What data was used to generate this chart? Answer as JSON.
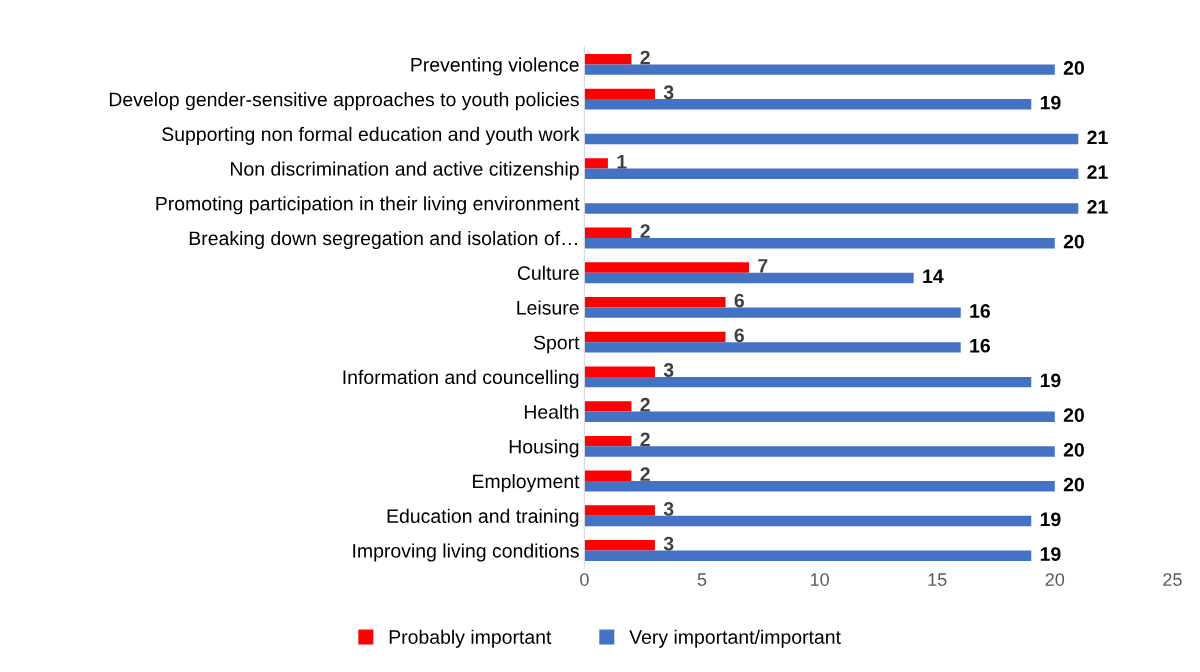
{
  "chart_data": {
    "type": "bar",
    "orientation": "horizontal",
    "categories": [
      "Preventing violence",
      "Develop gender-sensitive approaches to youth policies",
      "Supporting non formal education and youth work",
      "Non discrimination and active citizenship",
      "Promoting participation in their living environment",
      "Breaking down segregation and isolation of…",
      "Culture",
      "Leisure",
      "Sport",
      "Information and councelling",
      "Health",
      "Housing",
      "Employment",
      "Education and training",
      "Improving living conditions"
    ],
    "series": [
      {
        "name": "Probably important",
        "color": "#ff0000",
        "values": [
          2,
          3,
          null,
          1,
          null,
          2,
          7,
          6,
          6,
          3,
          2,
          2,
          2,
          3,
          3
        ]
      },
      {
        "name": "Very important/important",
        "color": "#4472c4",
        "values": [
          20,
          19,
          21,
          21,
          21,
          20,
          14,
          16,
          16,
          19,
          20,
          20,
          20,
          19,
          19
        ]
      }
    ],
    "xlim": [
      0,
      25
    ],
    "xticks": [
      0,
      5,
      10,
      15,
      20,
      25
    ],
    "grid": false,
    "legend": "bottom",
    "data_labels": true
  }
}
